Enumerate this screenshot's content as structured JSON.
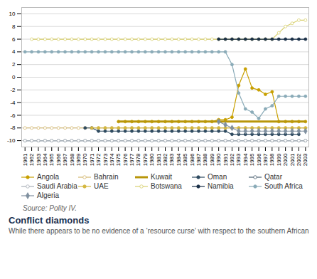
{
  "chart_data": {
    "type": "line",
    "x": [
      1961,
      1962,
      1963,
      1964,
      1965,
      1966,
      1967,
      1968,
      1969,
      1970,
      1971,
      1972,
      1973,
      1974,
      1975,
      1976,
      1977,
      1978,
      1979,
      1980,
      1981,
      1982,
      1983,
      1984,
      1985,
      1986,
      1987,
      1988,
      1989,
      1990,
      1991,
      1992,
      1993,
      1994,
      1995,
      1996,
      1997,
      1998,
      1999,
      2000,
      2001,
      2002,
      2003
    ],
    "xlim": [
      1960.5,
      2003.5
    ],
    "xticks": [
      1961,
      1962,
      1963,
      1964,
      1965,
      1966,
      1967,
      1968,
      1969,
      1970,
      1971,
      1972,
      1973,
      1974,
      1975,
      1976,
      1977,
      1978,
      1979,
      1980,
      1981,
      1982,
      1983,
      1984,
      1985,
      1986,
      1987,
      1988,
      1989,
      1990,
      1991,
      1992,
      1993,
      1994,
      1995,
      1996,
      1997,
      1998,
      1999,
      2000,
      2001,
      2002,
      2003
    ],
    "ylim": [
      -11,
      11
    ],
    "yticks": [
      -10,
      -8,
      -6,
      -4,
      -2,
      0,
      2,
      4,
      6,
      8,
      10
    ],
    "grid": true,
    "legend": "bottom",
    "series": [
      {
        "name": "Angola",
        "color": "#c8a000",
        "marker": "circle",
        "values": [
          null,
          null,
          null,
          null,
          null,
          null,
          null,
          null,
          null,
          null,
          null,
          null,
          null,
          null,
          -7,
          -7,
          -7,
          -7,
          -7,
          -7,
          -7,
          -7,
          -7,
          -7,
          -7,
          -7,
          -7,
          -7,
          -7,
          -6.7,
          -6.7,
          -6.3,
          -1.3,
          1.3,
          -1.7,
          -2.0,
          -2.7,
          -2.3,
          -7.0,
          -7.0,
          -7.0,
          -7.0,
          -7.0
        ]
      },
      {
        "name": "Bahrain",
        "color": "#d4b870",
        "marker": "circle-open",
        "values": [
          -8,
          -8,
          -8,
          -8,
          -8,
          -8,
          -8,
          -8,
          -8,
          -8,
          -8,
          -8,
          -8,
          -8,
          -8,
          -8,
          -8,
          -8,
          -8,
          -8,
          -8,
          -8,
          -8,
          -8,
          -8,
          -8,
          -8,
          -8,
          -8,
          -8,
          -8,
          -8,
          -8,
          -8,
          -8,
          -8,
          -8,
          -8,
          -8,
          -8,
          -8,
          -8,
          -8
        ]
      },
      {
        "name": "Kuwait",
        "color": "#b8960a",
        "marker": "none",
        "values": [
          null,
          null,
          null,
          null,
          null,
          null,
          null,
          null,
          null,
          null,
          null,
          null,
          null,
          null,
          -7,
          -7,
          -7,
          -7,
          -7,
          -7,
          -7,
          -7,
          -7,
          -7,
          -7,
          -7,
          -7,
          -7,
          -7,
          -7,
          -7,
          -7,
          -7,
          -7,
          -7,
          -7,
          -7,
          -7,
          -7,
          -7,
          -7,
          -7,
          -7
        ]
      },
      {
        "name": "Oman",
        "color": "#2e4a60",
        "marker": "circle",
        "values": [
          null,
          null,
          null,
          null,
          null,
          null,
          null,
          null,
          null,
          -8,
          -8,
          -8.5,
          -8.5,
          -8.5,
          -8.5,
          -8.5,
          -8.5,
          -8.5,
          -8.5,
          -8.5,
          -8.5,
          -8.5,
          -8.5,
          -8.5,
          -8.5,
          -8.5,
          -8.5,
          -8.5,
          -8.5,
          -8.5,
          -8.5,
          -9,
          -9,
          -9,
          -9,
          -9,
          -9,
          -9,
          -9,
          -9,
          -9,
          -9,
          null
        ]
      },
      {
        "name": "Qatar",
        "color": "#4a6070",
        "marker": "circle-open",
        "values": [
          -10,
          -10,
          -10,
          -10,
          -10,
          -10,
          -10,
          -10,
          -10,
          -10,
          -10,
          -10,
          -10,
          -10,
          -10,
          -10,
          -10,
          -10,
          -10,
          -10,
          -10,
          -10,
          -10,
          -10,
          -10,
          -10,
          -10,
          -10,
          -10,
          -10,
          -10,
          -10,
          -10,
          -10,
          -10,
          -10,
          -10,
          -10,
          -10,
          -10,
          -10,
          -10,
          -10
        ]
      },
      {
        "name": "Saudi Arabia",
        "color": "#a8b0b8",
        "marker": "circle-open",
        "values": [
          -10,
          -10,
          -10,
          -10,
          -10,
          -10,
          -10,
          -10,
          -10,
          -10,
          -10,
          -10,
          -10,
          -10,
          -10,
          -10,
          -10,
          -10,
          -10,
          -10,
          -10,
          -10,
          -10,
          -10,
          -10,
          -10,
          -10,
          -10,
          -10,
          -10,
          -10,
          -10,
          -10,
          -10,
          -10,
          -10,
          -10,
          -10,
          -10,
          -10,
          -10,
          -10,
          -10
        ]
      },
      {
        "name": "UAE",
        "color": "#d4b840",
        "marker": "circle",
        "values": [
          null,
          null,
          null,
          null,
          null,
          null,
          null,
          null,
          null,
          null,
          -8,
          -8,
          -8,
          -8,
          -8,
          -8,
          -8,
          -8,
          -8,
          -8,
          -8,
          -8,
          -8,
          -8,
          -8,
          -8,
          -8,
          -8,
          -8,
          -8,
          -8,
          -8,
          -8,
          -8,
          -8,
          -8,
          -8,
          -8,
          -8,
          -8,
          -8,
          -8,
          -8
        ]
      },
      {
        "name": "Botswana",
        "color": "#d8d070",
        "marker": "circle-open",
        "values": [
          null,
          6,
          6,
          6,
          6,
          6,
          6,
          6,
          6,
          6,
          6,
          6,
          6,
          6,
          6,
          6,
          6,
          6,
          6,
          6,
          6,
          6,
          6,
          6,
          6,
          6,
          6,
          6,
          6,
          6,
          6,
          6,
          6,
          6,
          6,
          6,
          6,
          6,
          7,
          8,
          8.5,
          9,
          9
        ]
      },
      {
        "name": "Namibia",
        "color": "#1a3048",
        "marker": "circle",
        "values": [
          null,
          null,
          null,
          null,
          null,
          null,
          null,
          null,
          null,
          null,
          null,
          null,
          null,
          null,
          null,
          null,
          null,
          null,
          null,
          null,
          null,
          null,
          null,
          null,
          null,
          null,
          null,
          null,
          null,
          6,
          6,
          6,
          6,
          6,
          6,
          6,
          6,
          6,
          6,
          6,
          6,
          6,
          6
        ]
      },
      {
        "name": "South Africa",
        "color": "#8aabb8",
        "marker": "circle",
        "values": [
          4,
          4,
          4,
          4,
          4,
          4,
          4,
          4,
          4,
          4,
          4,
          4,
          4,
          4,
          4,
          4,
          4,
          4,
          4,
          4,
          4,
          4,
          4,
          4,
          4,
          4,
          4,
          4,
          4,
          4,
          4,
          2,
          -2.5,
          -5,
          -5.5,
          -6.5,
          -5,
          -4.5,
          -3,
          -3,
          -3,
          -3,
          -3
        ]
      },
      {
        "name": "Algeria",
        "color": "#8090a0",
        "marker": "diamond",
        "values": [
          null,
          null,
          null,
          null,
          null,
          null,
          null,
          null,
          null,
          null,
          null,
          null,
          null,
          null,
          null,
          null,
          null,
          null,
          null,
          null,
          null,
          null,
          null,
          null,
          null,
          null,
          null,
          null,
          null,
          -7,
          -7.5,
          -8,
          -8.5,
          -8.5,
          -8.5,
          -8.5,
          -8.5,
          -8.5,
          -8.5,
          -8.5,
          -8.5,
          -8.5,
          -8.5
        ]
      }
    ],
    "annotations": [
      "Source: Polity IV.",
      "Conflict diamonds",
      "While there appears to be no evidence of a ‘resource curse’ with respect to the southern African"
    ]
  }
}
